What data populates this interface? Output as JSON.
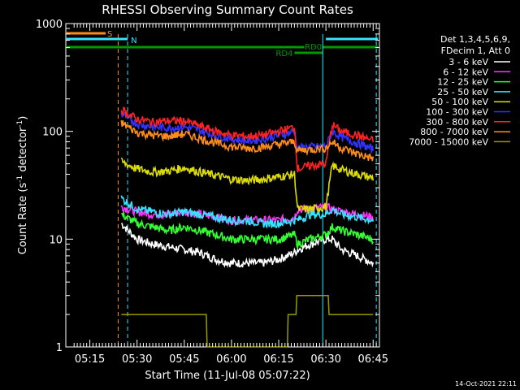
{
  "chart_data": {
    "type": "line",
    "title": "RHESSI Observing Summary Count Rates",
    "xlabel": "Start Time (11-Jul-08 05:07:22)",
    "ylabel": "Count Rate (s⁻¹ detector⁻¹)",
    "ylabel_parts": {
      "a": "Count Rate (s",
      "sup1": "-1",
      "b": " detector",
      "sup2": "-1",
      "c": ")"
    },
    "y_scale": "log",
    "ylim": [
      1,
      1000
    ],
    "xlim": [
      "05:07:22",
      "06:47:00"
    ],
    "x_ticks": [
      "05:15",
      "05:30",
      "05:45",
      "06:00",
      "06:15",
      "06:30",
      "06:45"
    ],
    "y_ticks": [
      "1",
      "10",
      "100",
      "1000"
    ],
    "legend_header": [
      "Det 1,3,4,5,6,9,",
      "FDecim 1, Att 0"
    ],
    "legend_position": "right",
    "timestamp": "14-Oct-2021 22:11",
    "flags": [
      {
        "label": "S",
        "color": "#ff8c1a",
        "from": "05:07:22",
        "to": "05:20:00"
      },
      {
        "label": "N",
        "color": "#33e5ff",
        "from": "05:07:22",
        "to": "05:27:00"
      },
      {
        "label": "N",
        "color": "#33e5ff",
        "from": "06:30:00",
        "to": "06:46:30"
      },
      {
        "label": "RD0",
        "color": "#009900",
        "from": "05:07:22",
        "to": "06:46:30"
      },
      {
        "label": "RD4",
        "color": "#009900",
        "from": "06:20:00",
        "to": "06:29:00"
      }
    ],
    "vlines": [
      {
        "time": "05:24:00",
        "color": "#ff8c1a",
        "style": "dashed"
      },
      {
        "time": "05:27:00",
        "color": "#33e5ff",
        "style": "dashed"
      },
      {
        "time": "06:29:00",
        "color": "#33e5ff",
        "style": "solid"
      },
      {
        "time": "06:46:00",
        "color": "#33e5ff",
        "style": "dashed"
      }
    ],
    "times": [
      "05:25",
      "05:30",
      "05:35",
      "05:40",
      "05:45",
      "05:50",
      "05:55",
      "06:00",
      "06:05",
      "06:10",
      "06:15",
      "06:20",
      "06:21",
      "06:25",
      "06:30",
      "06:32",
      "06:35",
      "06:40",
      "06:45"
    ],
    "series": [
      {
        "name": "3 - 6 keV",
        "color": "#ffffff",
        "values": [
          14,
          10,
          9,
          8.5,
          8,
          7.5,
          6.5,
          6,
          6,
          6,
          6.5,
          7.5,
          8,
          9,
          10,
          10,
          8,
          7,
          6
        ]
      },
      {
        "name": "6 - 12 keV",
        "color": "#ff33ff",
        "values": [
          20,
          18,
          17,
          17,
          18,
          17,
          16,
          15,
          15,
          15,
          15,
          16,
          19,
          19,
          20,
          19,
          18,
          17,
          16
        ]
      },
      {
        "name": "12 - 25 keV",
        "color": "#33ff33",
        "values": [
          17,
          14,
          13,
          12,
          13,
          12,
          11,
          10,
          10,
          10,
          10,
          11,
          9,
          10,
          11,
          13,
          12,
          11,
          10
        ]
      },
      {
        "name": "25 - 50 keV",
        "color": "#33e5ff",
        "values": [
          24,
          19,
          18,
          17,
          18,
          17,
          16,
          15,
          15,
          14,
          14,
          15,
          15,
          17,
          17,
          19,
          17,
          16,
          15
        ]
      },
      {
        "name": "50 - 100 keV",
        "color": "#dddd00",
        "values": [
          52,
          45,
          42,
          43,
          46,
          42,
          39,
          36,
          35,
          36,
          38,
          40,
          19,
          19,
          20,
          48,
          44,
          40,
          37
        ]
      },
      {
        "name": "100 - 300 keV",
        "color": "#3333ff",
        "values": [
          145,
          118,
          110,
          108,
          110,
          102,
          92,
          85,
          82,
          85,
          92,
          100,
          70,
          72,
          72,
          100,
          88,
          78,
          68
        ]
      },
      {
        "name": "300 - 800 keV",
        "color": "#ff2222",
        "values": [
          160,
          130,
          122,
          125,
          125,
          112,
          100,
          92,
          90,
          92,
          100,
          110,
          45,
          48,
          50,
          115,
          100,
          92,
          82
        ]
      },
      {
        "name": "800 - 7000 keV",
        "color": "#ff8c1a",
        "values": [
          120,
          98,
          92,
          90,
          95,
          86,
          78,
          72,
          70,
          71,
          76,
          80,
          66,
          68,
          70,
          80,
          70,
          62,
          56
        ]
      },
      {
        "name": "7000 - 15000 keV",
        "color": "#999900",
        "values": [
          2,
          2,
          2,
          2,
          2,
          2,
          1,
          1,
          1,
          1,
          1,
          2,
          3,
          3,
          3,
          2,
          2,
          2,
          2
        ]
      }
    ]
  }
}
